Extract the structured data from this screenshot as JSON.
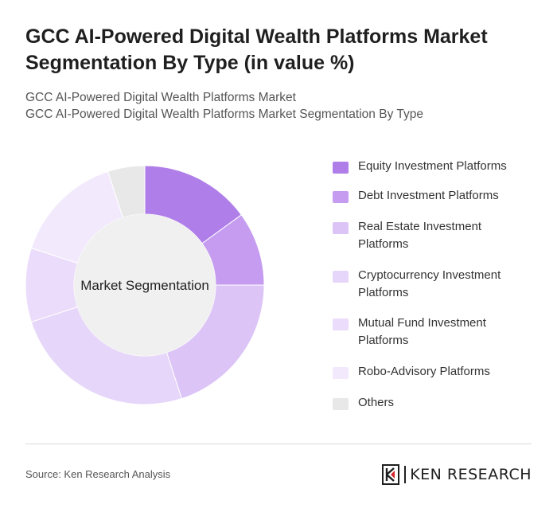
{
  "header": {
    "title": "GCC AI-Powered Digital Wealth Platforms Market Segmentation By Type (in value %)",
    "subtitle_line1": "GCC AI-Powered Digital Wealth Platforms Market",
    "subtitle_line2": "GCC AI-Powered Digital Wealth Platforms Market Segmentation By Type"
  },
  "chart_data": {
    "type": "pie",
    "style": "donut",
    "center_label": "Market Segmentation",
    "legend_position": "right",
    "slices": [
      {
        "label": "Equity Investment Platforms",
        "value": 15,
        "color": "#b07ee8"
      },
      {
        "label": "Debt Investment Platforms",
        "value": 10,
        "color": "#c59cf0"
      },
      {
        "label": "Real Estate Investment Platforms",
        "value": 20,
        "color": "#dcc4f7"
      },
      {
        "label": "Cryptocurrency Investment Platforms",
        "value": 25,
        "color": "#e6d6f9"
      },
      {
        "label": "Mutual Fund Investment Platforms",
        "value": 10,
        "color": "#eadcfa"
      },
      {
        "label": "Robo-Advisory Platforms",
        "value": 15,
        "color": "#f2eafc"
      },
      {
        "label": "Others",
        "value": 5,
        "color": "#e8e8e8"
      }
    ]
  },
  "footer": {
    "source": "Source: Ken Research Analysis",
    "brand": "KEN RESEARCH"
  }
}
